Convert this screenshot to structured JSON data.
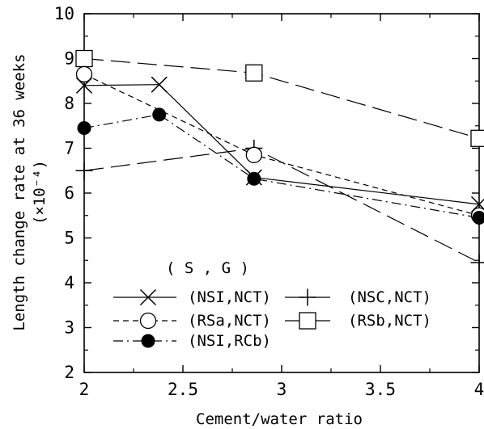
{
  "chart_data": {
    "type": "line",
    "xlabel": "Cement/water ratio",
    "ylabel": "Length change rate at 36 weeks",
    "ylabel_unit": "(×10⁻⁴)",
    "xlim": [
      2,
      4
    ],
    "ylim": [
      2,
      10
    ],
    "x_ticks": [
      "2",
      "2.5",
      "3",
      "3.5",
      "4"
    ],
    "y_ticks": [
      "2",
      "3",
      "4",
      "5",
      "6",
      "7",
      "8",
      "9",
      "10"
    ],
    "legend_header": "( S , G )",
    "grid": false,
    "series": [
      {
        "name": "(NSI,NCT)",
        "marker": "x",
        "line": "solid",
        "x": [
          2,
          2.38,
          2.86,
          4
        ],
        "y": [
          8.4,
          8.42,
          6.35,
          5.75
        ]
      },
      {
        "name": "(RSa,NCT)",
        "marker": "open-circle",
        "line": "short-dash",
        "x": [
          2,
          2.86,
          4
        ],
        "y": [
          8.65,
          6.85,
          5.5
        ]
      },
      {
        "name": "(NSI,RCb)",
        "marker": "filled-circle",
        "line": "dash-dot",
        "x": [
          2,
          2.38,
          2.86,
          4
        ],
        "y": [
          7.45,
          7.75,
          6.32,
          5.45
        ]
      },
      {
        "name": "(NSC,NCT)",
        "marker": "plus",
        "line": "long-dash",
        "x": [
          2,
          2.86,
          4
        ],
        "y": [
          6.5,
          7.0,
          4.45
        ]
      },
      {
        "name": "(RSb,NCT)",
        "marker": "open-square",
        "line": "long-dash",
        "x": [
          2,
          2.86,
          4
        ],
        "y": [
          9.0,
          8.68,
          7.22
        ]
      }
    ]
  }
}
